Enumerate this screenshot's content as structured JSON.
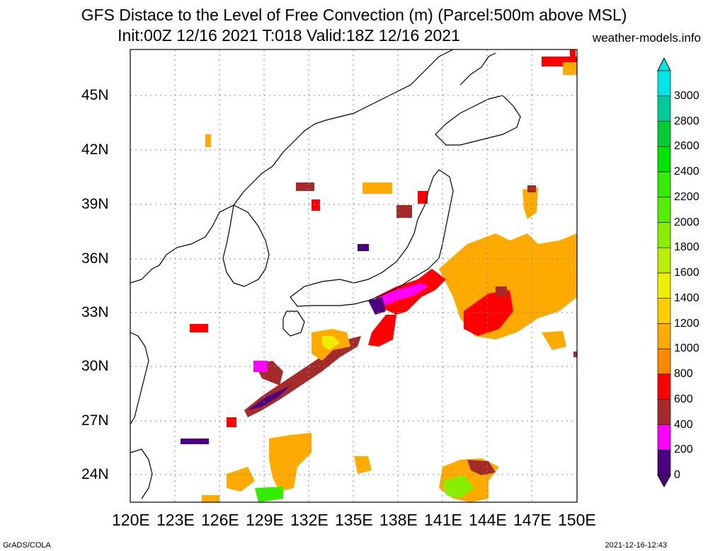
{
  "header": {
    "title_line1": "GFS Distace to the Level of Free Convection (m) (Parcel:500m above MSL)",
    "title_line2": "Init:00Z 12/16 2021 T:018 Valid:18Z 12/16 2021",
    "site": "weather-models.info"
  },
  "map": {
    "lat_labels": [
      "45N",
      "42N",
      "39N",
      "36N",
      "33N",
      "30N",
      "27N",
      "24N"
    ],
    "lon_labels": [
      "120E",
      "123E",
      "126E",
      "129E",
      "132E",
      "135E",
      "138E",
      "141E",
      "144E",
      "147E",
      "150E"
    ]
  },
  "colorbar": {
    "labels": [
      "3000",
      "2800",
      "2600",
      "2400",
      "2200",
      "2000",
      "1800",
      "1600",
      "1400",
      "1200",
      "1000",
      "800",
      "600",
      "400",
      "200",
      "0"
    ],
    "colors": [
      "#00e5e5",
      "#00cc99",
      "#00cc33",
      "#00e500",
      "#33ee00",
      "#55ee00",
      "#88ee00",
      "#bbee00",
      "#eeee00",
      "#ffcc00",
      "#ffaa00",
      "#ff8800",
      "#ff0000",
      "#a52a2a",
      "#ff00ff",
      "#4b0082"
    ]
  },
  "footer": {
    "left": "GrADS/COLA",
    "right": "2021-12-16-12:43"
  }
}
